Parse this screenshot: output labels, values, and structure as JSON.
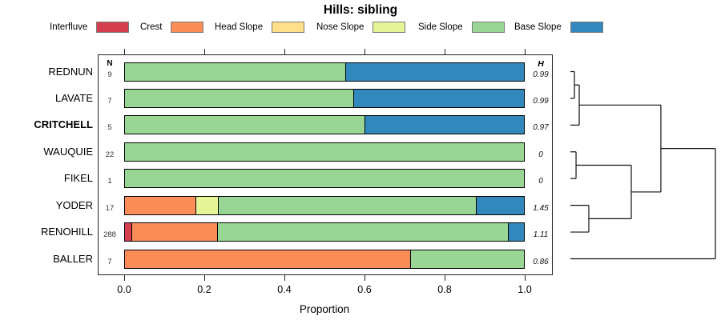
{
  "title": "Hills: sibling",
  "columns": {
    "n_header": "N",
    "h_header": "H"
  },
  "xaxis": {
    "label": "Proportion",
    "tick_labels": [
      "0.0",
      "0.2",
      "0.4",
      "0.6",
      "0.8",
      "1.0"
    ]
  },
  "legend": [
    {
      "label": "Interfluve",
      "color": "#d53e4f"
    },
    {
      "label": "Crest",
      "color": "#fc8d59"
    },
    {
      "label": "Head Slope",
      "color": "#fee08b"
    },
    {
      "label": "Nose Slope",
      "color": "#e6f598"
    },
    {
      "label": "Side Slope",
      "color": "#99d594"
    },
    {
      "label": "Base Slope",
      "color": "#3288bd"
    }
  ],
  "chart_data": {
    "type": "bar",
    "subtype": "horizontal-stacked-proportion-with-dendrogram",
    "title": "Hills: sibling",
    "xlabel": "Proportion",
    "xlim": [
      0,
      1
    ],
    "x_ticks": [
      0,
      0.2,
      0.4,
      0.6,
      0.8,
      1.0
    ],
    "series_names": [
      "Interfluve",
      "Crest",
      "Head Slope",
      "Nose Slope",
      "Side Slope",
      "Base Slope"
    ],
    "rows": [
      {
        "name": "REDNUN",
        "bold": false,
        "n": 9,
        "h": "0.99",
        "segments": [
          {
            "series": "Side Slope",
            "from": 0,
            "to": 0.554
          },
          {
            "series": "Base Slope",
            "from": 0.554,
            "to": 1
          }
        ]
      },
      {
        "name": "LAVATE",
        "bold": false,
        "n": 7,
        "h": "0.99",
        "segments": [
          {
            "series": "Side Slope",
            "from": 0,
            "to": 0.574
          },
          {
            "series": "Base Slope",
            "from": 0.574,
            "to": 1
          }
        ]
      },
      {
        "name": "CRITCHELL",
        "bold": true,
        "n": 5,
        "h": "0.97",
        "segments": [
          {
            "series": "Side Slope",
            "from": 0,
            "to": 0.602
          },
          {
            "series": "Base Slope",
            "from": 0.602,
            "to": 1
          }
        ]
      },
      {
        "name": "WAUQUIE",
        "bold": false,
        "n": 22,
        "h": "0",
        "segments": [
          {
            "series": "Side Slope",
            "from": 0,
            "to": 1
          }
        ]
      },
      {
        "name": "FIKEL",
        "bold": false,
        "n": 1,
        "h": "0",
        "segments": [
          {
            "series": "Side Slope",
            "from": 0,
            "to": 1
          }
        ]
      },
      {
        "name": "YODER",
        "bold": false,
        "n": 17,
        "h": "1.45",
        "segments": [
          {
            "series": "Crest",
            "from": 0,
            "to": 0.18
          },
          {
            "series": "Nose Slope",
            "from": 0.18,
            "to": 0.235
          },
          {
            "series": "Side Slope",
            "from": 0.235,
            "to": 0.88
          },
          {
            "series": "Base Slope",
            "from": 0.88,
            "to": 1
          }
        ]
      },
      {
        "name": "RENOHILL",
        "bold": false,
        "n": 288,
        "h": "1.11",
        "segments": [
          {
            "series": "Interfluve",
            "from": 0,
            "to": 0.019
          },
          {
            "series": "Crest",
            "from": 0.019,
            "to": 0.233
          },
          {
            "series": "Side Slope",
            "from": 0.233,
            "to": 0.96
          },
          {
            "series": "Base Slope",
            "from": 0.96,
            "to": 1
          }
        ]
      },
      {
        "name": "BALLER",
        "bold": false,
        "n": 7,
        "h": "0.86",
        "segments": [
          {
            "series": "Crest",
            "from": 0,
            "to": 0.716
          },
          {
            "series": "Side Slope",
            "from": 0.716,
            "to": 1
          }
        ]
      }
    ],
    "dendrogram": {
      "note": "segments [x0,y0,x1,y1]; x = normalized merge height 0-1, y = row index units",
      "topology": "(((REDNUN,LAVATE),CRITCHELL),((WAUQUIE,FIKEL),(YODER,RENOHILL))),BALLER",
      "segments": [
        [
          0,
          0,
          0.028,
          0
        ],
        [
          0,
          1,
          0.028,
          1
        ],
        [
          0.028,
          0,
          0.028,
          1
        ],
        [
          0.028,
          0.5,
          0.061,
          0.5
        ],
        [
          0,
          2,
          0.061,
          2
        ],
        [
          0.061,
          0.5,
          0.061,
          2
        ],
        [
          0.061,
          1.25,
          0.624,
          1.25
        ],
        [
          0,
          3,
          0.039,
          3
        ],
        [
          0,
          4,
          0.039,
          4
        ],
        [
          0.039,
          3,
          0.039,
          4
        ],
        [
          0.039,
          3.5,
          0.42,
          3.5
        ],
        [
          0,
          5,
          0.127,
          5
        ],
        [
          0,
          6,
          0.127,
          6
        ],
        [
          0.127,
          5,
          0.127,
          6
        ],
        [
          0.127,
          5.5,
          0.42,
          5.5
        ],
        [
          0.42,
          3.5,
          0.42,
          5.5
        ],
        [
          0.42,
          4.5,
          0.624,
          4.5
        ],
        [
          0.624,
          1.25,
          0.624,
          4.5
        ],
        [
          0.624,
          2.875,
          1,
          2.875
        ],
        [
          1,
          2.875,
          1,
          7
        ],
        [
          0,
          7,
          1,
          7
        ]
      ]
    }
  }
}
